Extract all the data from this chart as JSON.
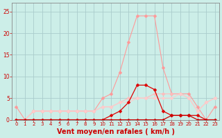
{
  "background_color": "#cceee8",
  "grid_color": "#aacccc",
  "xlabel": "Vent moyen/en rafales ( km/h )",
  "xlabel_color": "#cc0000",
  "xlabel_fontsize": 7,
  "xtick_color": "#cc0000",
  "ytick_color": "#cc0000",
  "xlim": [
    -0.5,
    23.5
  ],
  "ylim": [
    0,
    27
  ],
  "yticks": [
    0,
    5,
    10,
    15,
    20,
    25
  ],
  "xticks": [
    0,
    1,
    2,
    3,
    4,
    5,
    6,
    7,
    8,
    9,
    10,
    11,
    12,
    13,
    14,
    15,
    16,
    17,
    18,
    19,
    20,
    21,
    22,
    23
  ],
  "lines": [
    {
      "x": [
        0,
        1,
        2,
        3,
        4,
        5,
        6,
        7,
        8,
        9,
        10,
        11,
        12,
        13,
        14,
        15,
        16,
        17,
        18,
        19,
        20,
        21,
        22,
        23
      ],
      "y": [
        3,
        0,
        2,
        2,
        2,
        2,
        2,
        2,
        2,
        2,
        5,
        6,
        11,
        18,
        24,
        24,
        24,
        12,
        6,
        6,
        6,
        3,
        0,
        3
      ],
      "color": "#ff9999",
      "lw": 0.8
    },
    {
      "x": [
        0,
        1,
        2,
        3,
        4,
        5,
        6,
        7,
        8,
        9,
        10,
        11,
        12,
        13,
        14,
        15,
        16,
        17,
        18,
        19,
        20,
        21,
        22,
        23
      ],
      "y": [
        0,
        0,
        2,
        2,
        2,
        2,
        2,
        2,
        2,
        2,
        3,
        3,
        4,
        5,
        5,
        5,
        6,
        6,
        6,
        6,
        5,
        2,
        4,
        5
      ],
      "color": "#ffbbbb",
      "lw": 0.8
    },
    {
      "x": [
        0,
        1,
        2,
        3,
        4,
        5,
        6,
        7,
        8,
        9,
        10,
        11,
        12,
        13,
        14,
        15,
        16,
        17,
        18,
        19,
        20,
        21,
        22,
        23
      ],
      "y": [
        0,
        0,
        2,
        2,
        2,
        2,
        2,
        2,
        2,
        2,
        3,
        3,
        4,
        4,
        5,
        5,
        5,
        5,
        5,
        6,
        5,
        2,
        4,
        5
      ],
      "color": "#ffcccc",
      "lw": 0.8
    },
    {
      "x": [
        0,
        1,
        2,
        3,
        4,
        5,
        6,
        7,
        8,
        9,
        10,
        11,
        12,
        13,
        14,
        15,
        16,
        17,
        18,
        19,
        20,
        21,
        22,
        23
      ],
      "y": [
        0,
        0,
        0,
        0,
        0,
        0,
        0,
        0,
        0,
        0,
        0,
        1,
        2,
        4,
        8,
        8,
        7,
        2,
        1,
        1,
        1,
        1,
        0,
        0
      ],
      "color": "#dd0000",
      "lw": 0.9
    },
    {
      "x": [
        0,
        1,
        2,
        3,
        4,
        5,
        6,
        7,
        8,
        9,
        10,
        11,
        12,
        13,
        14,
        15,
        16,
        17,
        18,
        19,
        20,
        21,
        22,
        23
      ],
      "y": [
        0,
        0,
        0,
        0,
        0,
        0,
        0,
        0,
        0,
        0,
        0,
        0,
        0,
        0,
        0,
        0,
        0,
        0,
        1,
        1,
        1,
        0,
        0,
        0
      ],
      "color": "#cc0000",
      "lw": 0.9
    }
  ],
  "marker_size": 2.5
}
